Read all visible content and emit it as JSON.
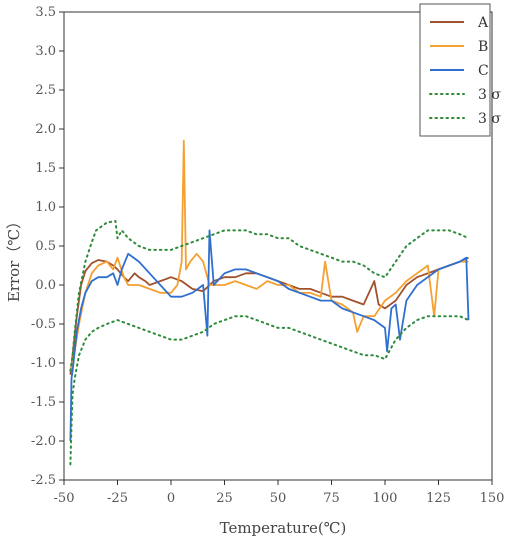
{
  "chart_data": {
    "type": "line",
    "xlabel": "Temperature(℃)",
    "ylabel": "Error（℃）",
    "xlim": [
      -50,
      150
    ],
    "ylim": [
      -2.5,
      3.5
    ],
    "xticks": [
      "-50",
      "-25",
      "0",
      "25",
      "50",
      "75",
      "100",
      "125",
      "150"
    ],
    "yticks": [
      "-2.5",
      "-2.0",
      "-1.5",
      "-1.0",
      "-0.5",
      "0.0",
      "0.5",
      "1.0",
      "1.5",
      "2.0",
      "2.5",
      "3.0",
      "3.5"
    ],
    "grid": false,
    "legend_position": "top-right",
    "legend": [
      "A",
      "B",
      "C",
      "3 σ",
      "3 σ"
    ],
    "series": [
      {
        "name": "A",
        "color": "#a0522d",
        "style": "solid",
        "x": [
          -47,
          -46,
          -44,
          -42,
          -40,
          -37,
          -34,
          -30,
          -27,
          -25,
          -22,
          -20,
          -17,
          -15,
          -12,
          -10,
          -5,
          0,
          5,
          10,
          15,
          20,
          25,
          30,
          35,
          40,
          45,
          50,
          55,
          60,
          65,
          70,
          75,
          80,
          85,
          90,
          95,
          97,
          100,
          105,
          110,
          115,
          120,
          125,
          130,
          135,
          139
        ],
        "y": [
          -1.15,
          -0.9,
          -0.4,
          0.0,
          0.18,
          0.28,
          0.32,
          0.3,
          0.25,
          0.2,
          0.1,
          0.05,
          0.15,
          0.1,
          0.05,
          0.0,
          0.05,
          0.1,
          0.05,
          -0.05,
          -0.08,
          0.05,
          0.1,
          0.1,
          0.15,
          0.15,
          0.1,
          0.05,
          0.0,
          -0.05,
          -0.05,
          -0.1,
          -0.15,
          -0.15,
          -0.2,
          -0.25,
          0.05,
          -0.25,
          -0.3,
          -0.2,
          0.0,
          0.1,
          0.15,
          0.2,
          0.25,
          0.3,
          0.35
        ]
      },
      {
        "name": "B",
        "color": "#f5a030",
        "style": "solid",
        "x": [
          -47,
          -45,
          -43,
          -40,
          -37,
          -34,
          -30,
          -27,
          -25,
          -22,
          -20,
          -15,
          -10,
          -5,
          0,
          3,
          5,
          6,
          7,
          9,
          12,
          15,
          18,
          20,
          25,
          30,
          35,
          40,
          45,
          50,
          55,
          60,
          65,
          70,
          72,
          75,
          80,
          85,
          87,
          90,
          95,
          100,
          105,
          110,
          115,
          120,
          123,
          125,
          130,
          135,
          139
        ],
        "y": [
          -1.1,
          -0.85,
          -0.5,
          -0.1,
          0.15,
          0.25,
          0.3,
          0.2,
          0.35,
          0.1,
          0.0,
          0.0,
          -0.05,
          -0.1,
          -0.1,
          0.0,
          0.3,
          1.85,
          0.2,
          0.3,
          0.4,
          0.3,
          0.0,
          0.0,
          0.0,
          0.05,
          0.0,
          -0.05,
          0.05,
          0.0,
          0.0,
          -0.1,
          -0.1,
          -0.15,
          0.3,
          -0.2,
          -0.25,
          -0.35,
          -0.6,
          -0.4,
          -0.4,
          -0.2,
          -0.1,
          0.05,
          0.15,
          0.25,
          -0.4,
          0.2,
          0.25,
          0.3,
          0.3
        ]
      },
      {
        "name": "C",
        "color": "#2f6fd0",
        "style": "solid",
        "x": [
          -47,
          -46.5,
          -46,
          -44,
          -42,
          -40,
          -37,
          -34,
          -30,
          -27,
          -25,
          -23,
          -20,
          -15,
          -10,
          -5,
          0,
          5,
          10,
          15,
          17,
          18,
          20,
          25,
          30,
          35,
          40,
          45,
          50,
          55,
          60,
          65,
          70,
          75,
          80,
          85,
          90,
          95,
          100,
          101,
          103,
          105,
          107,
          110,
          115,
          120,
          125,
          130,
          135,
          138,
          139
        ],
        "y": [
          -2.0,
          -1.2,
          -1.1,
          -0.6,
          -0.3,
          -0.1,
          0.05,
          0.1,
          0.1,
          0.15,
          0.0,
          0.2,
          0.4,
          0.3,
          0.15,
          0.0,
          -0.15,
          -0.15,
          -0.1,
          0.0,
          -0.65,
          0.7,
          0.0,
          0.15,
          0.2,
          0.2,
          0.15,
          0.1,
          0.05,
          -0.05,
          -0.1,
          -0.15,
          -0.2,
          -0.2,
          -0.3,
          -0.35,
          -0.4,
          -0.45,
          -0.55,
          -0.85,
          -0.3,
          -0.25,
          -0.7,
          -0.2,
          0.0,
          0.1,
          0.2,
          0.25,
          0.3,
          0.35,
          -0.45
        ]
      },
      {
        "name": "3 σ",
        "color": "#2e8b3a",
        "style": "dotted",
        "x": [
          -47,
          -46,
          -45,
          -43,
          -40,
          -37,
          -35,
          -30,
          -26,
          -25,
          -23,
          -20,
          -15,
          -10,
          -5,
          0,
          5,
          10,
          15,
          20,
          25,
          30,
          35,
          40,
          45,
          50,
          55,
          60,
          65,
          70,
          75,
          80,
          85,
          90,
          95,
          100,
          105,
          110,
          115,
          120,
          125,
          130,
          135,
          139
        ],
        "y": [
          -1.1,
          -0.9,
          -0.6,
          -0.1,
          0.3,
          0.55,
          0.7,
          0.8,
          0.82,
          0.6,
          0.7,
          0.6,
          0.5,
          0.45,
          0.45,
          0.45,
          0.5,
          0.55,
          0.6,
          0.65,
          0.7,
          0.7,
          0.7,
          0.65,
          0.65,
          0.6,
          0.6,
          0.5,
          0.45,
          0.4,
          0.35,
          0.3,
          0.3,
          0.25,
          0.15,
          0.1,
          0.3,
          0.5,
          0.6,
          0.7,
          0.7,
          0.7,
          0.65,
          0.6
        ]
      },
      {
        "name": "3 σ",
        "color": "#2e8b3a",
        "style": "dotted",
        "x": [
          -47,
          -46.5,
          -46,
          -45,
          -43,
          -40,
          -37,
          -34,
          -30,
          -25,
          -20,
          -15,
          -10,
          -5,
          0,
          5,
          10,
          15,
          20,
          25,
          30,
          35,
          40,
          45,
          50,
          55,
          60,
          65,
          70,
          75,
          80,
          85,
          90,
          95,
          100,
          105,
          110,
          115,
          120,
          125,
          130,
          135,
          139
        ],
        "y": [
          -2.3,
          -1.8,
          -1.4,
          -1.2,
          -0.9,
          -0.7,
          -0.6,
          -0.55,
          -0.5,
          -0.45,
          -0.5,
          -0.55,
          -0.6,
          -0.65,
          -0.7,
          -0.7,
          -0.65,
          -0.6,
          -0.5,
          -0.45,
          -0.4,
          -0.4,
          -0.45,
          -0.5,
          -0.55,
          -0.55,
          -0.6,
          -0.65,
          -0.7,
          -0.75,
          -0.8,
          -0.85,
          -0.9,
          -0.9,
          -0.95,
          -0.7,
          -0.55,
          -0.45,
          -0.4,
          -0.4,
          -0.4,
          -0.4,
          -0.45
        ]
      }
    ]
  }
}
